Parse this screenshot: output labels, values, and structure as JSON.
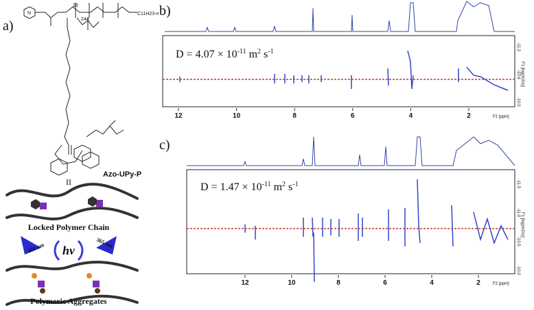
{
  "panel_a": {
    "label": "a)",
    "atom": "N",
    "repeat_1": "23",
    "repeat_2": "244",
    "end_group": "C11H23-n",
    "compound": "Azo-UPy-P",
    "equals": "II",
    "state_1": "Locked Polymer Chain",
    "light": "hv",
    "wavelength_left": "460 nm",
    "wavelength_right": "365 nm",
    "state_2": "Polymeric Aggregates"
  },
  "panel_b": {
    "label": "b)",
    "diffusion": {
      "prefix": "D = 4.07 × 10",
      "exponent": "-11",
      "unit_1": " m",
      "unit_1_exp": "2",
      "unit_2": " s",
      "unit_2_exp": "-1"
    },
    "x_ticks": [
      "12",
      "10",
      "8",
      "6",
      "4",
      "2"
    ],
    "x_label": "F2 [ppm]",
    "y_ticks": [
      "-11.2",
      "-10.6",
      "-10.0"
    ],
    "y_label": "F1 [log(m2/s)]"
  },
  "panel_c": {
    "label": "c)",
    "diffusion": {
      "prefix": "D = 1.47 × 10",
      "exponent": "-11",
      "unit_1": " m",
      "unit_1_exp": "2",
      "unit_2": " s",
      "unit_2_exp": "-1"
    },
    "x_ticks": [
      "12",
      "10",
      "8",
      "6",
      "4",
      "2"
    ],
    "x_label": "F2 [ppm]",
    "y_ticks": [
      "-11.5",
      "-11.0",
      "-10.5",
      "-10.0"
    ],
    "y_label": "F1 [log(m2/s)]"
  }
}
